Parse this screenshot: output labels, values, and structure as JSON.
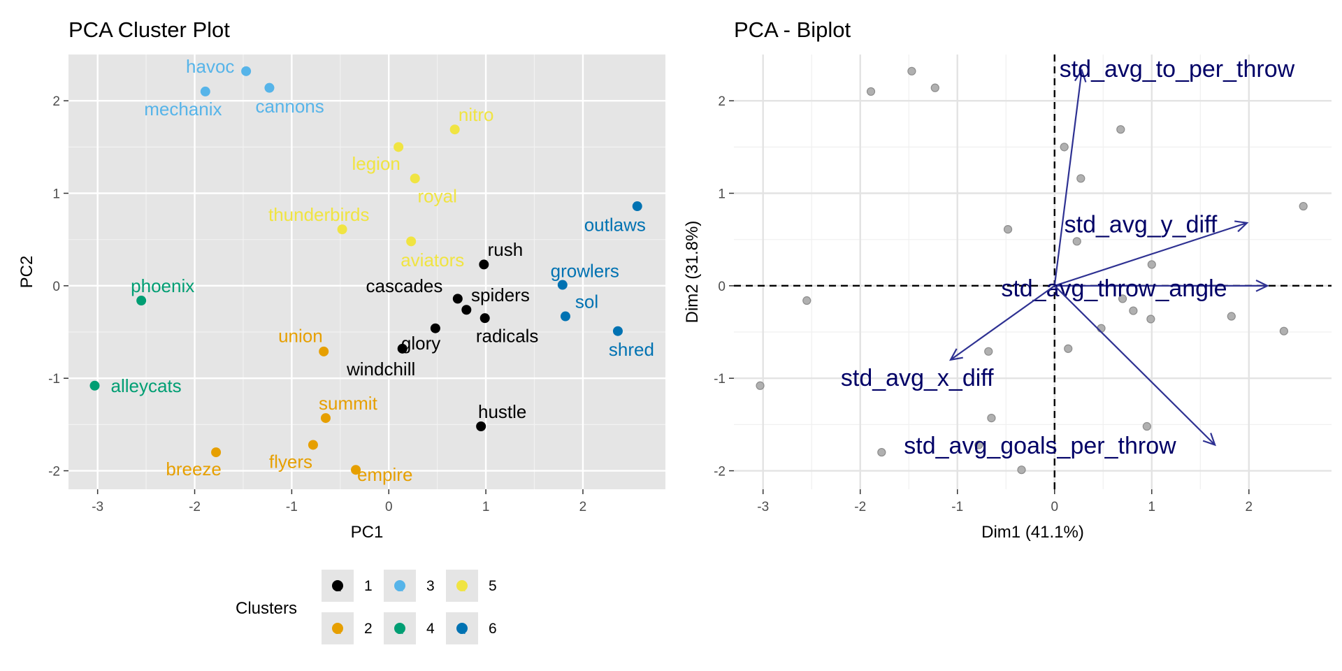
{
  "chart_data": [
    {
      "type": "scatter",
      "title": "PCA Cluster Plot",
      "xlabel": "PC1",
      "ylabel": "PC2",
      "xlim": [
        -3.3,
        2.85
      ],
      "ylim": [
        -2.2,
        2.5
      ],
      "xticks": [
        -3,
        -2,
        -1,
        0,
        1,
        2
      ],
      "yticks": [
        -2,
        -1,
        0,
        1,
        2
      ],
      "xtick_labels": [
        "-3",
        "-2",
        "-1",
        "0",
        "1",
        "2"
      ],
      "ytick_labels": [
        "-2",
        "-1",
        "0",
        "1",
        "2"
      ],
      "grid": true,
      "legend": {
        "title": "Clusters",
        "position": "bottom",
        "glyph": "a",
        "entries": [
          {
            "cluster": "1",
            "color": "#000000"
          },
          {
            "cluster": "3",
            "color": "#56B4E9"
          },
          {
            "cluster": "5",
            "color": "#F0E442"
          },
          {
            "cluster": "2",
            "color": "#E69F00"
          },
          {
            "cluster": "4",
            "color": "#009E73"
          },
          {
            "cluster": "6",
            "color": "#0072B2"
          }
        ]
      },
      "points": [
        {
          "label": "havoc",
          "x": -1.47,
          "y": 2.32,
          "cluster": "3",
          "lx": -1.84,
          "ly": 2.37
        },
        {
          "label": "mechanix",
          "x": -1.89,
          "y": 2.1,
          "cluster": "3",
          "lx": -2.12,
          "ly": 1.91
        },
        {
          "label": "cannons",
          "x": -1.23,
          "y": 2.14,
          "cluster": "3",
          "lx": -1.02,
          "ly": 1.94
        },
        {
          "label": "nitro",
          "x": 0.68,
          "y": 1.69,
          "cluster": "5",
          "lx": 0.9,
          "ly": 1.85
        },
        {
          "label": "legion",
          "x": 0.1,
          "y": 1.5,
          "cluster": "5",
          "lx": -0.13,
          "ly": 1.32
        },
        {
          "label": "royal",
          "x": 0.27,
          "y": 1.16,
          "cluster": "5",
          "lx": 0.5,
          "ly": 0.97
        },
        {
          "label": "thunderbirds",
          "x": -0.48,
          "y": 0.61,
          "cluster": "5",
          "lx": -0.72,
          "ly": 0.77
        },
        {
          "label": "aviators",
          "x": 0.23,
          "y": 0.48,
          "cluster": "5",
          "lx": 0.45,
          "ly": 0.28
        },
        {
          "label": "outlaws",
          "x": 2.56,
          "y": 0.86,
          "cluster": "6",
          "lx": 2.33,
          "ly": 0.66
        },
        {
          "label": "growlers",
          "x": 1.79,
          "y": 0.01,
          "cluster": "6",
          "lx": 2.02,
          "ly": 0.16
        },
        {
          "label": "sol",
          "x": 1.82,
          "y": -0.33,
          "cluster": "6",
          "lx": 2.04,
          "ly": -0.17
        },
        {
          "label": "shred",
          "x": 2.36,
          "y": -0.49,
          "cluster": "6",
          "lx": 2.5,
          "ly": -0.69
        },
        {
          "label": "rush",
          "x": 0.98,
          "y": 0.23,
          "cluster": "1",
          "lx": 1.2,
          "ly": 0.39
        },
        {
          "label": "cascades",
          "x": 0.71,
          "y": -0.14,
          "cluster": "1",
          "lx": 0.16,
          "ly": 0.0
        },
        {
          "label": "spiders",
          "x": 0.8,
          "y": -0.26,
          "cluster": "1",
          "lx": 1.15,
          "ly": -0.1
        },
        {
          "label": "radicals",
          "x": 0.99,
          "y": -0.35,
          "cluster": "1",
          "lx": 1.22,
          "ly": -0.54
        },
        {
          "label": "glory",
          "x": 0.48,
          "y": -0.46,
          "cluster": "1",
          "lx": 0.33,
          "ly": -0.62
        },
        {
          "label": "windchill",
          "x": 0.14,
          "y": -0.68,
          "cluster": "1",
          "lx": -0.08,
          "ly": -0.9
        },
        {
          "label": "hustle",
          "x": 0.95,
          "y": -1.52,
          "cluster": "1",
          "lx": 1.17,
          "ly": -1.36
        },
        {
          "label": "phoenix",
          "x": -2.55,
          "y": -0.16,
          "cluster": "4",
          "lx": -2.33,
          "ly": 0.0
        },
        {
          "label": "alleycats",
          "x": -3.03,
          "y": -1.08,
          "cluster": "4",
          "lx": -2.5,
          "ly": -1.08
        },
        {
          "label": "union",
          "x": -0.67,
          "y": -0.71,
          "cluster": "2",
          "lx": -0.91,
          "ly": -0.54
        },
        {
          "label": "summit",
          "x": -0.65,
          "y": -1.43,
          "cluster": "2",
          "lx": -0.42,
          "ly": -1.27
        },
        {
          "label": "flyers",
          "x": -0.78,
          "y": -1.72,
          "cluster": "2",
          "lx": -1.01,
          "ly": -1.9
        },
        {
          "label": "breeze",
          "x": -1.78,
          "y": -1.8,
          "cluster": "2",
          "lx": -2.01,
          "ly": -1.98
        },
        {
          "label": "empire",
          "x": -0.34,
          "y": -1.99,
          "cluster": "2",
          "lx": -0.04,
          "ly": -2.04
        }
      ]
    },
    {
      "type": "scatter",
      "title": "PCA - Biplot",
      "xlabel": "Dim1 (41.1%)",
      "ylabel": "Dim2 (31.8%)",
      "xlim": [
        -3.3,
        2.85
      ],
      "ylim": [
        -2.2,
        2.5
      ],
      "xticks": [
        -3,
        -2,
        -1,
        0,
        1,
        2
      ],
      "yticks": [
        -2,
        -1,
        0,
        1,
        2
      ],
      "xtick_labels": [
        "-3",
        "-2",
        "-1",
        "0",
        "1",
        "2"
      ],
      "ytick_labels": [
        "-2",
        "-1",
        "0",
        "1",
        "2"
      ],
      "grid": true,
      "point_color": "#b0b0b0",
      "arrow_color": "#2e3192",
      "arrow_label_color": "#000066",
      "points": [
        {
          "x": -1.47,
          "y": 2.32
        },
        {
          "x": -1.89,
          "y": 2.1
        },
        {
          "x": -1.23,
          "y": 2.14
        },
        {
          "x": 0.68,
          "y": 1.69
        },
        {
          "x": 0.1,
          "y": 1.5
        },
        {
          "x": 0.27,
          "y": 1.16
        },
        {
          "x": -0.48,
          "y": 0.61
        },
        {
          "x": 0.23,
          "y": 0.48
        },
        {
          "x": 2.56,
          "y": 0.86
        },
        {
          "x": 1.0,
          "y": 0.23
        },
        {
          "x": -2.55,
          "y": -0.16
        },
        {
          "x": 0.7,
          "y": -0.14
        },
        {
          "x": 0.81,
          "y": -0.27
        },
        {
          "x": 0.99,
          "y": -0.36
        },
        {
          "x": 1.82,
          "y": -0.33
        },
        {
          "x": 2.36,
          "y": -0.49
        },
        {
          "x": 0.48,
          "y": -0.46
        },
        {
          "x": 0.14,
          "y": -0.68
        },
        {
          "x": -0.68,
          "y": -0.71
        },
        {
          "x": -3.03,
          "y": -1.08
        },
        {
          "x": -0.65,
          "y": -1.43
        },
        {
          "x": -0.78,
          "y": -1.72
        },
        {
          "x": -1.78,
          "y": -1.8
        },
        {
          "x": -0.34,
          "y": -1.99
        },
        {
          "x": 0.95,
          "y": -1.52
        }
      ],
      "arrows": [
        {
          "label": "std_avg_to_per_throw",
          "x": 0.28,
          "y": 2.33,
          "lx": 0.05,
          "ly": 2.34
        },
        {
          "label": "std_avg_y_diff",
          "x": 1.98,
          "y": 0.68,
          "lx": 0.1,
          "ly": 0.66
        },
        {
          "label": "std_avg_throw_angle",
          "x": 2.19,
          "y": 0.0,
          "lx": -0.55,
          "ly": -0.03
        },
        {
          "label": "std_avg_x_diff",
          "x": -1.07,
          "y": -0.8,
          "lx": -2.2,
          "ly": -1.0
        },
        {
          "label": "std_avg_goals_per_throw",
          "x": 1.65,
          "y": -1.72,
          "lx": -1.55,
          "ly": -1.73
        }
      ]
    }
  ]
}
